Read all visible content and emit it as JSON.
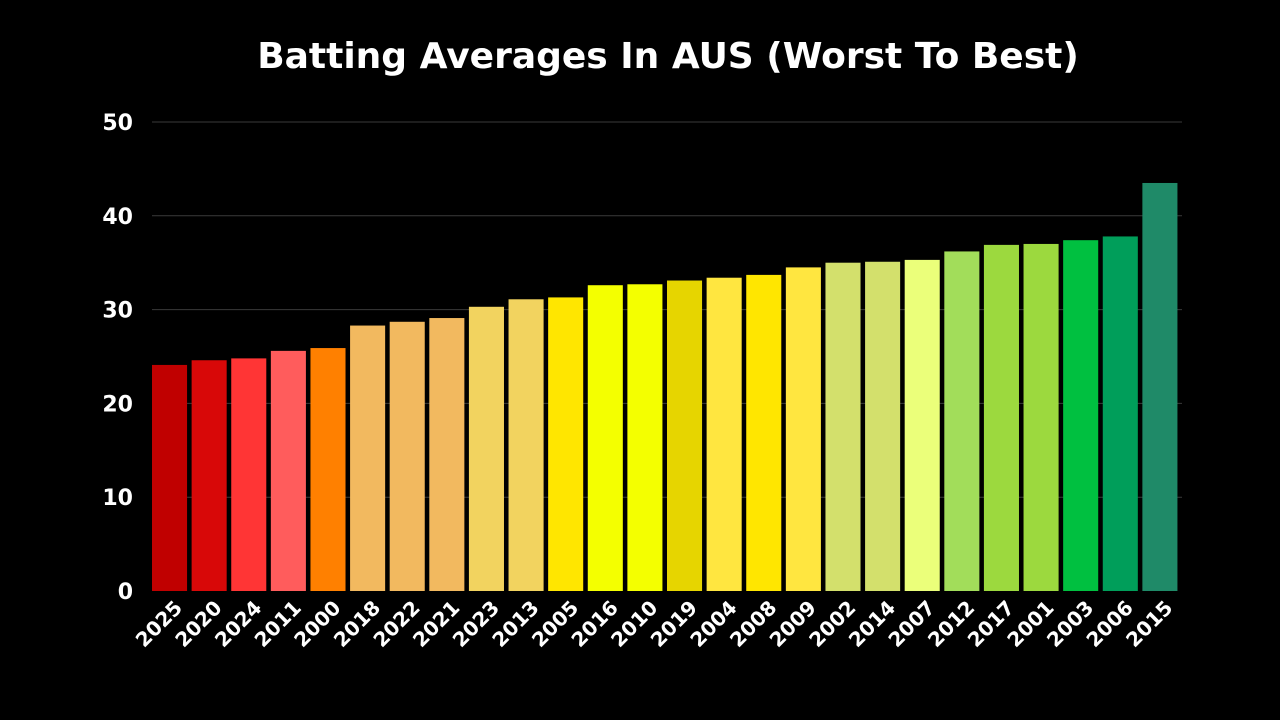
{
  "chart_data": {
    "type": "bar",
    "title": "Batting Averages In AUS (Worst To Best)",
    "xlabel": "",
    "ylabel": "",
    "ylim": [
      0,
      50
    ],
    "yticks": [
      0,
      10,
      20,
      30,
      40,
      50
    ],
    "grid": true,
    "categories": [
      "2025",
      "2020",
      "2024",
      "2011",
      "2000",
      "2018",
      "2022",
      "2021",
      "2023",
      "2013",
      "2005",
      "2016",
      "2010",
      "2019",
      "2004",
      "2008",
      "2009",
      "2002",
      "2014",
      "2007",
      "2012",
      "2017",
      "2001",
      "2003",
      "2006",
      "2015"
    ],
    "values": [
      24.1,
      24.6,
      24.8,
      25.6,
      25.9,
      28.3,
      28.7,
      29.1,
      30.3,
      31.1,
      31.3,
      32.6,
      32.7,
      33.1,
      33.4,
      33.7,
      34.5,
      35.0,
      35.1,
      35.3,
      36.2,
      36.9,
      37.0,
      37.4,
      37.8,
      43.5
    ],
    "colors": [
      "#c00000",
      "#d80808",
      "#ff3535",
      "#ff5c5c",
      "#ff8000",
      "#f2b95f",
      "#f2b95f",
      "#f2b95f",
      "#f2d35f",
      "#f2d35f",
      "#ffe600",
      "#f4ff00",
      "#f4ff00",
      "#e6d500",
      "#ffe640",
      "#ffe600",
      "#ffe640",
      "#d3e06c",
      "#d3e06c",
      "#ebff7a",
      "#a2dd5a",
      "#9cd93e",
      "#9cd93e",
      "#00c040",
      "#009e5a",
      "#1f8a68"
    ]
  }
}
